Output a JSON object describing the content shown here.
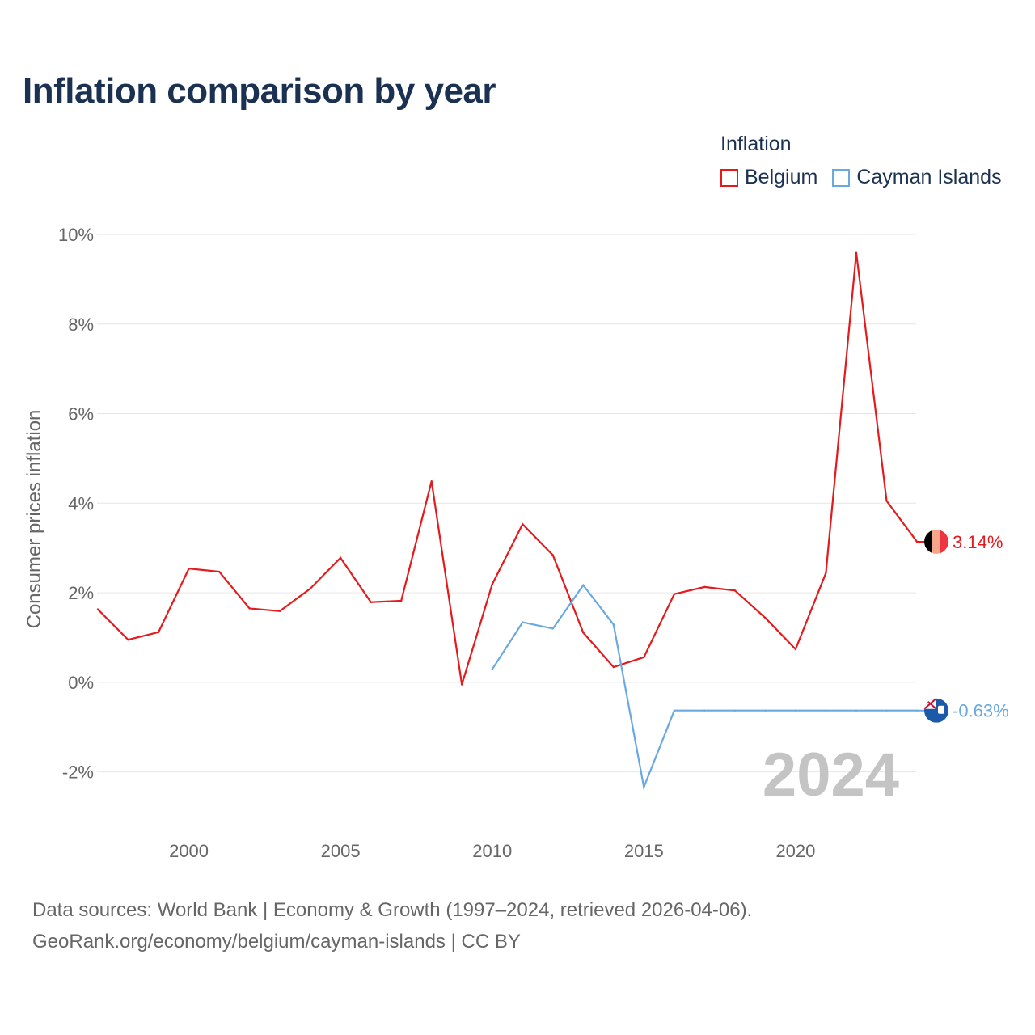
{
  "chart_data": {
    "type": "line",
    "title": "Inflation comparison by year",
    "legend_title": "Inflation",
    "ylabel": "Consumer prices inflation",
    "xlabel": "",
    "ylim": [
      -3.0,
      10.0
    ],
    "xlim": [
      1997,
      2024
    ],
    "y_ticks": [
      -2,
      0,
      2,
      4,
      6,
      8,
      10
    ],
    "y_tick_labels": [
      "-2%",
      "0%",
      "2%",
      "4%",
      "6%",
      "8%",
      "10%"
    ],
    "x_ticks": [
      2000,
      2005,
      2010,
      2015,
      2020
    ],
    "x_tick_labels": [
      "2000",
      "2005",
      "2010",
      "2015",
      "2020"
    ],
    "grid": true,
    "legend_position": "top-right",
    "year_watermark": "2024",
    "series": [
      {
        "name": "Belgium",
        "color": "#e41a1c",
        "end_label": "3.14%",
        "x": [
          1997,
          1998,
          1999,
          2000,
          2001,
          2002,
          2003,
          2004,
          2005,
          2006,
          2007,
          2008,
          2009,
          2010,
          2011,
          2012,
          2013,
          2014,
          2015,
          2016,
          2017,
          2018,
          2019,
          2020,
          2021,
          2022,
          2023,
          2024
        ],
        "values": [
          1.63,
          0.95,
          1.12,
          2.54,
          2.47,
          1.65,
          1.59,
          2.09,
          2.78,
          1.79,
          1.82,
          4.49,
          -0.05,
          2.19,
          3.53,
          2.84,
          1.11,
          0.34,
          0.56,
          1.97,
          2.13,
          2.05,
          1.44,
          0.74,
          2.44,
          9.59,
          4.05,
          3.14
        ]
      },
      {
        "name": "Cayman Islands",
        "color": "#6aa9e0",
        "end_label": "-0.63%",
        "x": [
          2010,
          2011,
          2012,
          2013,
          2014,
          2015,
          2016,
          2017,
          2018,
          2019,
          2020,
          2021,
          2022,
          2023,
          2024
        ],
        "values": [
          0.29,
          1.34,
          1.2,
          2.17,
          1.29,
          -2.34,
          -0.63,
          -0.63,
          -0.63,
          -0.63,
          -0.63,
          -0.63,
          -0.63,
          -0.63,
          -0.63
        ]
      }
    ]
  },
  "footer": {
    "line1": "Data sources: World Bank | Economy & Growth (1997–2024, retrieved 2026-04-06).",
    "line2": "GeoRank.org/economy/belgium/cayman-islands | CC BY"
  }
}
